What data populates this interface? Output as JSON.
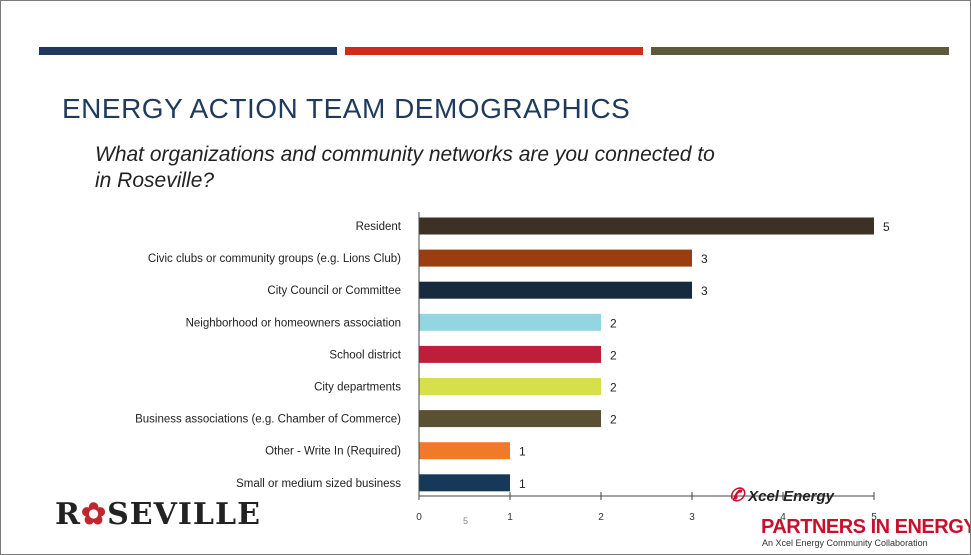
{
  "slide": {
    "title": "ENERGY ACTION TEAM DEMOGRAPHICS",
    "question": "What organizations and community networks are you connected to in Roseville?",
    "page_number": "5",
    "stripes": [
      "#1f3a5c",
      "#d12b1c",
      "#5c5a3a"
    ]
  },
  "logos": {
    "roseville_pre": "R",
    "roseville_rose": "✿",
    "roseville_post": "SEVILLE",
    "xcel_mark": "✆",
    "xcel": "Xcel Energy",
    "partners": "PARTNERS IN ENERGY",
    "partners_sub": "An Xcel Energy Community Collaboration"
  },
  "chart_data": {
    "type": "bar",
    "orientation": "horizontal",
    "categories": [
      "Resident",
      "Civic clubs or community groups (e.g. Lions Club)",
      "City Council or Committee",
      "Neighborhood or homeowners association",
      "School district",
      "City departments",
      "Business associations (e.g. Chamber of Commerce)",
      "Other - Write In (Required)",
      "Small or medium sized business"
    ],
    "values": [
      5,
      3,
      3,
      2,
      2,
      2,
      2,
      1,
      1
    ],
    "colors": [
      "#3b3124",
      "#9a3d10",
      "#182a3d",
      "#92d6e0",
      "#be1e3b",
      "#d5e04a",
      "#5a5132",
      "#f07a2a",
      "#16395a"
    ],
    "xlim": [
      0,
      5
    ],
    "xticks": [
      0,
      1,
      2,
      3,
      4,
      5
    ],
    "grid": false
  }
}
